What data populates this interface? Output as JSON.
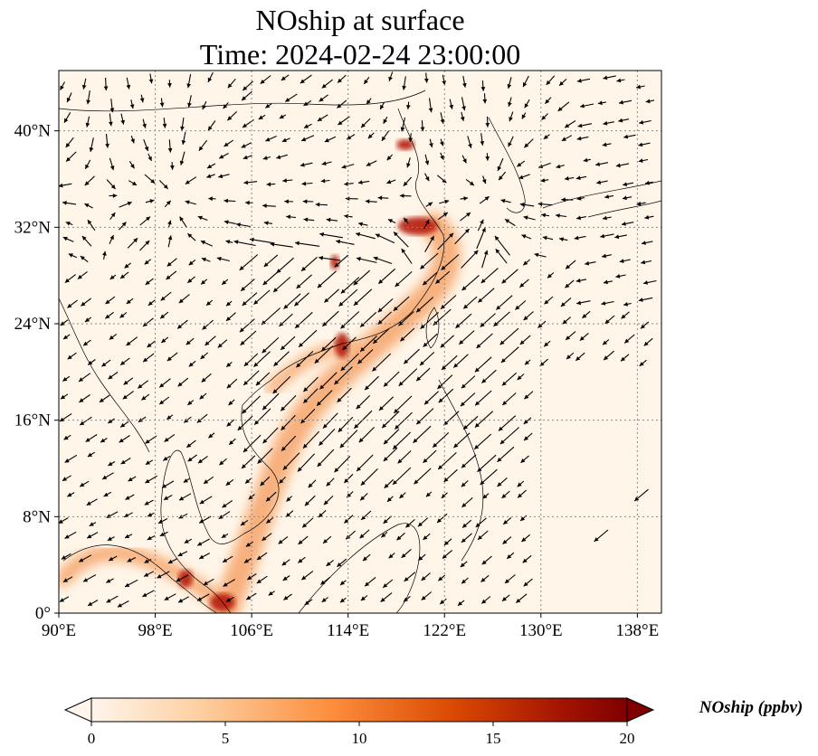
{
  "title": {
    "line1": "NOship at surface",
    "line2": "Time: 2024-02-24 23:00:00"
  },
  "map": {
    "extent": {
      "lon": [
        90,
        140
      ],
      "lat": [
        0,
        45
      ]
    },
    "lon_ticks": [
      {
        "value": 90,
        "label": "90°E"
      },
      {
        "value": 98,
        "label": "98°E"
      },
      {
        "value": 106,
        "label": "106°E"
      },
      {
        "value": 114,
        "label": "114°E"
      },
      {
        "value": 122,
        "label": "122°E"
      },
      {
        "value": 130,
        "label": "130°E"
      },
      {
        "value": 138,
        "label": "138°E"
      }
    ],
    "lat_ticks": [
      {
        "value": 0,
        "label": "0°"
      },
      {
        "value": 8,
        "label": "8°N"
      },
      {
        "value": 16,
        "label": "16°N"
      },
      {
        "value": 24,
        "label": "24°N"
      },
      {
        "value": 32,
        "label": "32°N"
      },
      {
        "value": 40,
        "label": "40°N"
      }
    ],
    "gridlines": "on",
    "background_color": "#fff6e9",
    "plume_color": "#f6a46a",
    "hotspot_color": "#b51b0b",
    "arrow_color": "#000000"
  },
  "colorbar": {
    "title": "NOship (ppbv)",
    "min": 0,
    "max": 20,
    "ticks": [
      {
        "value": 0,
        "label": "0"
      },
      {
        "value": 5,
        "label": "5"
      },
      {
        "value": 10,
        "label": "10"
      },
      {
        "value": 15,
        "label": "15"
      },
      {
        "value": 20,
        "label": "20"
      }
    ],
    "colors": [
      "#fff5eb",
      "#fdd0a2",
      "#fd8d3c",
      "#d94801",
      "#a31300",
      "#7f0000"
    ],
    "extend": "both"
  }
}
